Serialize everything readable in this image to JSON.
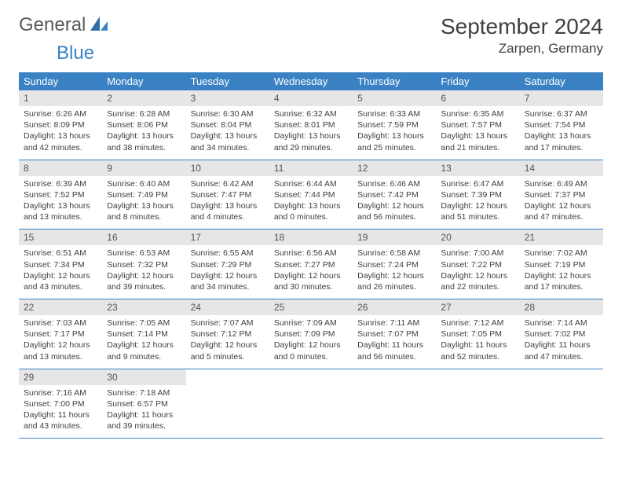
{
  "brand": {
    "text1": "General",
    "text2": "Blue"
  },
  "title": "September 2024",
  "location": "Zarpen, Germany",
  "colors": {
    "header_bg": "#3b82c4",
    "header_text": "#ffffff",
    "daynum_bg": "#e6e6e6",
    "text": "#404040",
    "row_border": "#3b82c4",
    "page_bg": "#ffffff"
  },
  "day_headers": [
    "Sunday",
    "Monday",
    "Tuesday",
    "Wednesday",
    "Thursday",
    "Friday",
    "Saturday"
  ],
  "weeks": [
    [
      {
        "n": "1",
        "sr": "Sunrise: 6:26 AM",
        "ss": "Sunset: 8:09 PM",
        "dl1": "Daylight: 13 hours",
        "dl2": "and 42 minutes."
      },
      {
        "n": "2",
        "sr": "Sunrise: 6:28 AM",
        "ss": "Sunset: 8:06 PM",
        "dl1": "Daylight: 13 hours",
        "dl2": "and 38 minutes."
      },
      {
        "n": "3",
        "sr": "Sunrise: 6:30 AM",
        "ss": "Sunset: 8:04 PM",
        "dl1": "Daylight: 13 hours",
        "dl2": "and 34 minutes."
      },
      {
        "n": "4",
        "sr": "Sunrise: 6:32 AM",
        "ss": "Sunset: 8:01 PM",
        "dl1": "Daylight: 13 hours",
        "dl2": "and 29 minutes."
      },
      {
        "n": "5",
        "sr": "Sunrise: 6:33 AM",
        "ss": "Sunset: 7:59 PM",
        "dl1": "Daylight: 13 hours",
        "dl2": "and 25 minutes."
      },
      {
        "n": "6",
        "sr": "Sunrise: 6:35 AM",
        "ss": "Sunset: 7:57 PM",
        "dl1": "Daylight: 13 hours",
        "dl2": "and 21 minutes."
      },
      {
        "n": "7",
        "sr": "Sunrise: 6:37 AM",
        "ss": "Sunset: 7:54 PM",
        "dl1": "Daylight: 13 hours",
        "dl2": "and 17 minutes."
      }
    ],
    [
      {
        "n": "8",
        "sr": "Sunrise: 6:39 AM",
        "ss": "Sunset: 7:52 PM",
        "dl1": "Daylight: 13 hours",
        "dl2": "and 13 minutes."
      },
      {
        "n": "9",
        "sr": "Sunrise: 6:40 AM",
        "ss": "Sunset: 7:49 PM",
        "dl1": "Daylight: 13 hours",
        "dl2": "and 8 minutes."
      },
      {
        "n": "10",
        "sr": "Sunrise: 6:42 AM",
        "ss": "Sunset: 7:47 PM",
        "dl1": "Daylight: 13 hours",
        "dl2": "and 4 minutes."
      },
      {
        "n": "11",
        "sr": "Sunrise: 6:44 AM",
        "ss": "Sunset: 7:44 PM",
        "dl1": "Daylight: 13 hours",
        "dl2": "and 0 minutes."
      },
      {
        "n": "12",
        "sr": "Sunrise: 6:46 AM",
        "ss": "Sunset: 7:42 PM",
        "dl1": "Daylight: 12 hours",
        "dl2": "and 56 minutes."
      },
      {
        "n": "13",
        "sr": "Sunrise: 6:47 AM",
        "ss": "Sunset: 7:39 PM",
        "dl1": "Daylight: 12 hours",
        "dl2": "and 51 minutes."
      },
      {
        "n": "14",
        "sr": "Sunrise: 6:49 AM",
        "ss": "Sunset: 7:37 PM",
        "dl1": "Daylight: 12 hours",
        "dl2": "and 47 minutes."
      }
    ],
    [
      {
        "n": "15",
        "sr": "Sunrise: 6:51 AM",
        "ss": "Sunset: 7:34 PM",
        "dl1": "Daylight: 12 hours",
        "dl2": "and 43 minutes."
      },
      {
        "n": "16",
        "sr": "Sunrise: 6:53 AM",
        "ss": "Sunset: 7:32 PM",
        "dl1": "Daylight: 12 hours",
        "dl2": "and 39 minutes."
      },
      {
        "n": "17",
        "sr": "Sunrise: 6:55 AM",
        "ss": "Sunset: 7:29 PM",
        "dl1": "Daylight: 12 hours",
        "dl2": "and 34 minutes."
      },
      {
        "n": "18",
        "sr": "Sunrise: 6:56 AM",
        "ss": "Sunset: 7:27 PM",
        "dl1": "Daylight: 12 hours",
        "dl2": "and 30 minutes."
      },
      {
        "n": "19",
        "sr": "Sunrise: 6:58 AM",
        "ss": "Sunset: 7:24 PM",
        "dl1": "Daylight: 12 hours",
        "dl2": "and 26 minutes."
      },
      {
        "n": "20",
        "sr": "Sunrise: 7:00 AM",
        "ss": "Sunset: 7:22 PM",
        "dl1": "Daylight: 12 hours",
        "dl2": "and 22 minutes."
      },
      {
        "n": "21",
        "sr": "Sunrise: 7:02 AM",
        "ss": "Sunset: 7:19 PM",
        "dl1": "Daylight: 12 hours",
        "dl2": "and 17 minutes."
      }
    ],
    [
      {
        "n": "22",
        "sr": "Sunrise: 7:03 AM",
        "ss": "Sunset: 7:17 PM",
        "dl1": "Daylight: 12 hours",
        "dl2": "and 13 minutes."
      },
      {
        "n": "23",
        "sr": "Sunrise: 7:05 AM",
        "ss": "Sunset: 7:14 PM",
        "dl1": "Daylight: 12 hours",
        "dl2": "and 9 minutes."
      },
      {
        "n": "24",
        "sr": "Sunrise: 7:07 AM",
        "ss": "Sunset: 7:12 PM",
        "dl1": "Daylight: 12 hours",
        "dl2": "and 5 minutes."
      },
      {
        "n": "25",
        "sr": "Sunrise: 7:09 AM",
        "ss": "Sunset: 7:09 PM",
        "dl1": "Daylight: 12 hours",
        "dl2": "and 0 minutes."
      },
      {
        "n": "26",
        "sr": "Sunrise: 7:11 AM",
        "ss": "Sunset: 7:07 PM",
        "dl1": "Daylight: 11 hours",
        "dl2": "and 56 minutes."
      },
      {
        "n": "27",
        "sr": "Sunrise: 7:12 AM",
        "ss": "Sunset: 7:05 PM",
        "dl1": "Daylight: 11 hours",
        "dl2": "and 52 minutes."
      },
      {
        "n": "28",
        "sr": "Sunrise: 7:14 AM",
        "ss": "Sunset: 7:02 PM",
        "dl1": "Daylight: 11 hours",
        "dl2": "and 47 minutes."
      }
    ],
    [
      {
        "n": "29",
        "sr": "Sunrise: 7:16 AM",
        "ss": "Sunset: 7:00 PM",
        "dl1": "Daylight: 11 hours",
        "dl2": "and 43 minutes."
      },
      {
        "n": "30",
        "sr": "Sunrise: 7:18 AM",
        "ss": "Sunset: 6:57 PM",
        "dl1": "Daylight: 11 hours",
        "dl2": "and 39 minutes."
      },
      null,
      null,
      null,
      null,
      null
    ]
  ]
}
